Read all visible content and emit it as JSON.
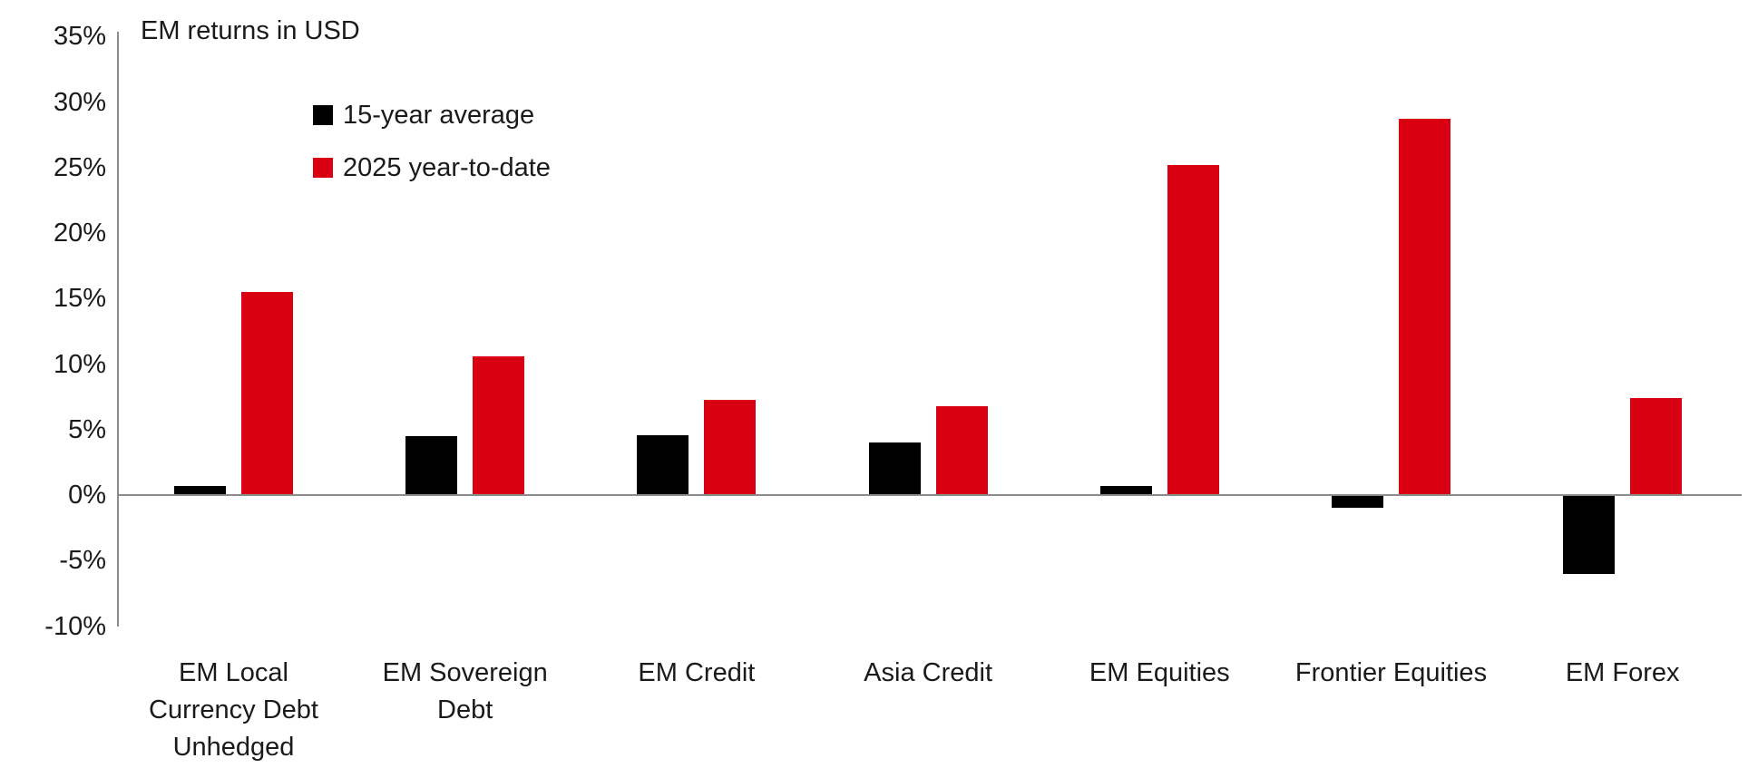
{
  "chart_data": {
    "type": "bar",
    "title": "EM returns in USD",
    "categories": [
      "EM Local Currency Debt Unhedged",
      "EM Sovereign Debt",
      "EM Credit",
      "Asia Credit",
      "EM Equities",
      "Frontier Equities",
      "EM Forex"
    ],
    "category_label_lines": [
      [
        "EM Local",
        "Currency Debt",
        "Unhedged"
      ],
      [
        "EM Sovereign",
        "Debt"
      ],
      [
        "EM Credit"
      ],
      [
        "Asia Credit"
      ],
      [
        "EM Equities"
      ],
      [
        "Frontier Equities"
      ],
      [
        "EM Forex"
      ]
    ],
    "series": [
      {
        "name": "15-year average",
        "color": "#000000",
        "values": [
          0.7,
          4.5,
          4.6,
          4.0,
          0.7,
          -1.0,
          -6.0
        ]
      },
      {
        "name": "2025 year-to-date",
        "color": "#d90011",
        "values": [
          15.5,
          10.6,
          7.3,
          6.8,
          25.2,
          28.7,
          7.4
        ]
      }
    ],
    "ylabel": "",
    "xlabel": "",
    "ylim": [
      -10,
      35
    ],
    "ytick_values": [
      35,
      30,
      25,
      20,
      15,
      10,
      5,
      0,
      -5,
      -10
    ],
    "ytick_labels": [
      "35%",
      "30%",
      "25%",
      "20%",
      "15%",
      "10%",
      "5%",
      "0%",
      "-5%",
      "-10%"
    ],
    "grid": "off",
    "legend_position": "inside-top-left",
    "axis_color": "#8c8c8c",
    "text_color": "#1a1a1a",
    "background_color": "#ffffff"
  }
}
